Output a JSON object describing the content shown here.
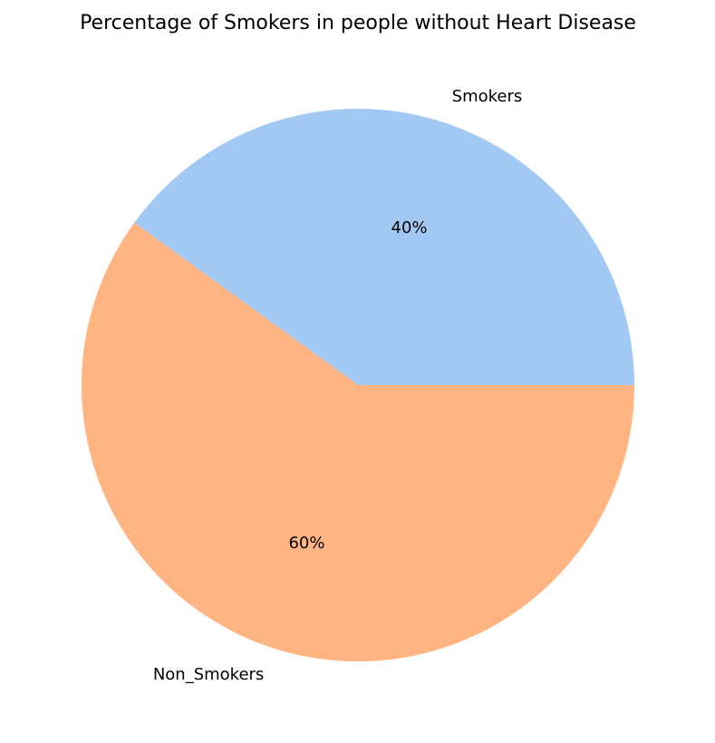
{
  "chart_data": {
    "type": "pie",
    "title": "Percentage of Smokers in people without Heart Disease",
    "slices": [
      {
        "label": "Smokers",
        "value": 40,
        "pct_label": "40%",
        "color": "#a1c9f4"
      },
      {
        "label": "Non_Smokers",
        "value": 60,
        "pct_label": "60%",
        "color": "#ffb482"
      }
    ],
    "start_angle_deg": 0,
    "direction": "counterclockwise"
  }
}
